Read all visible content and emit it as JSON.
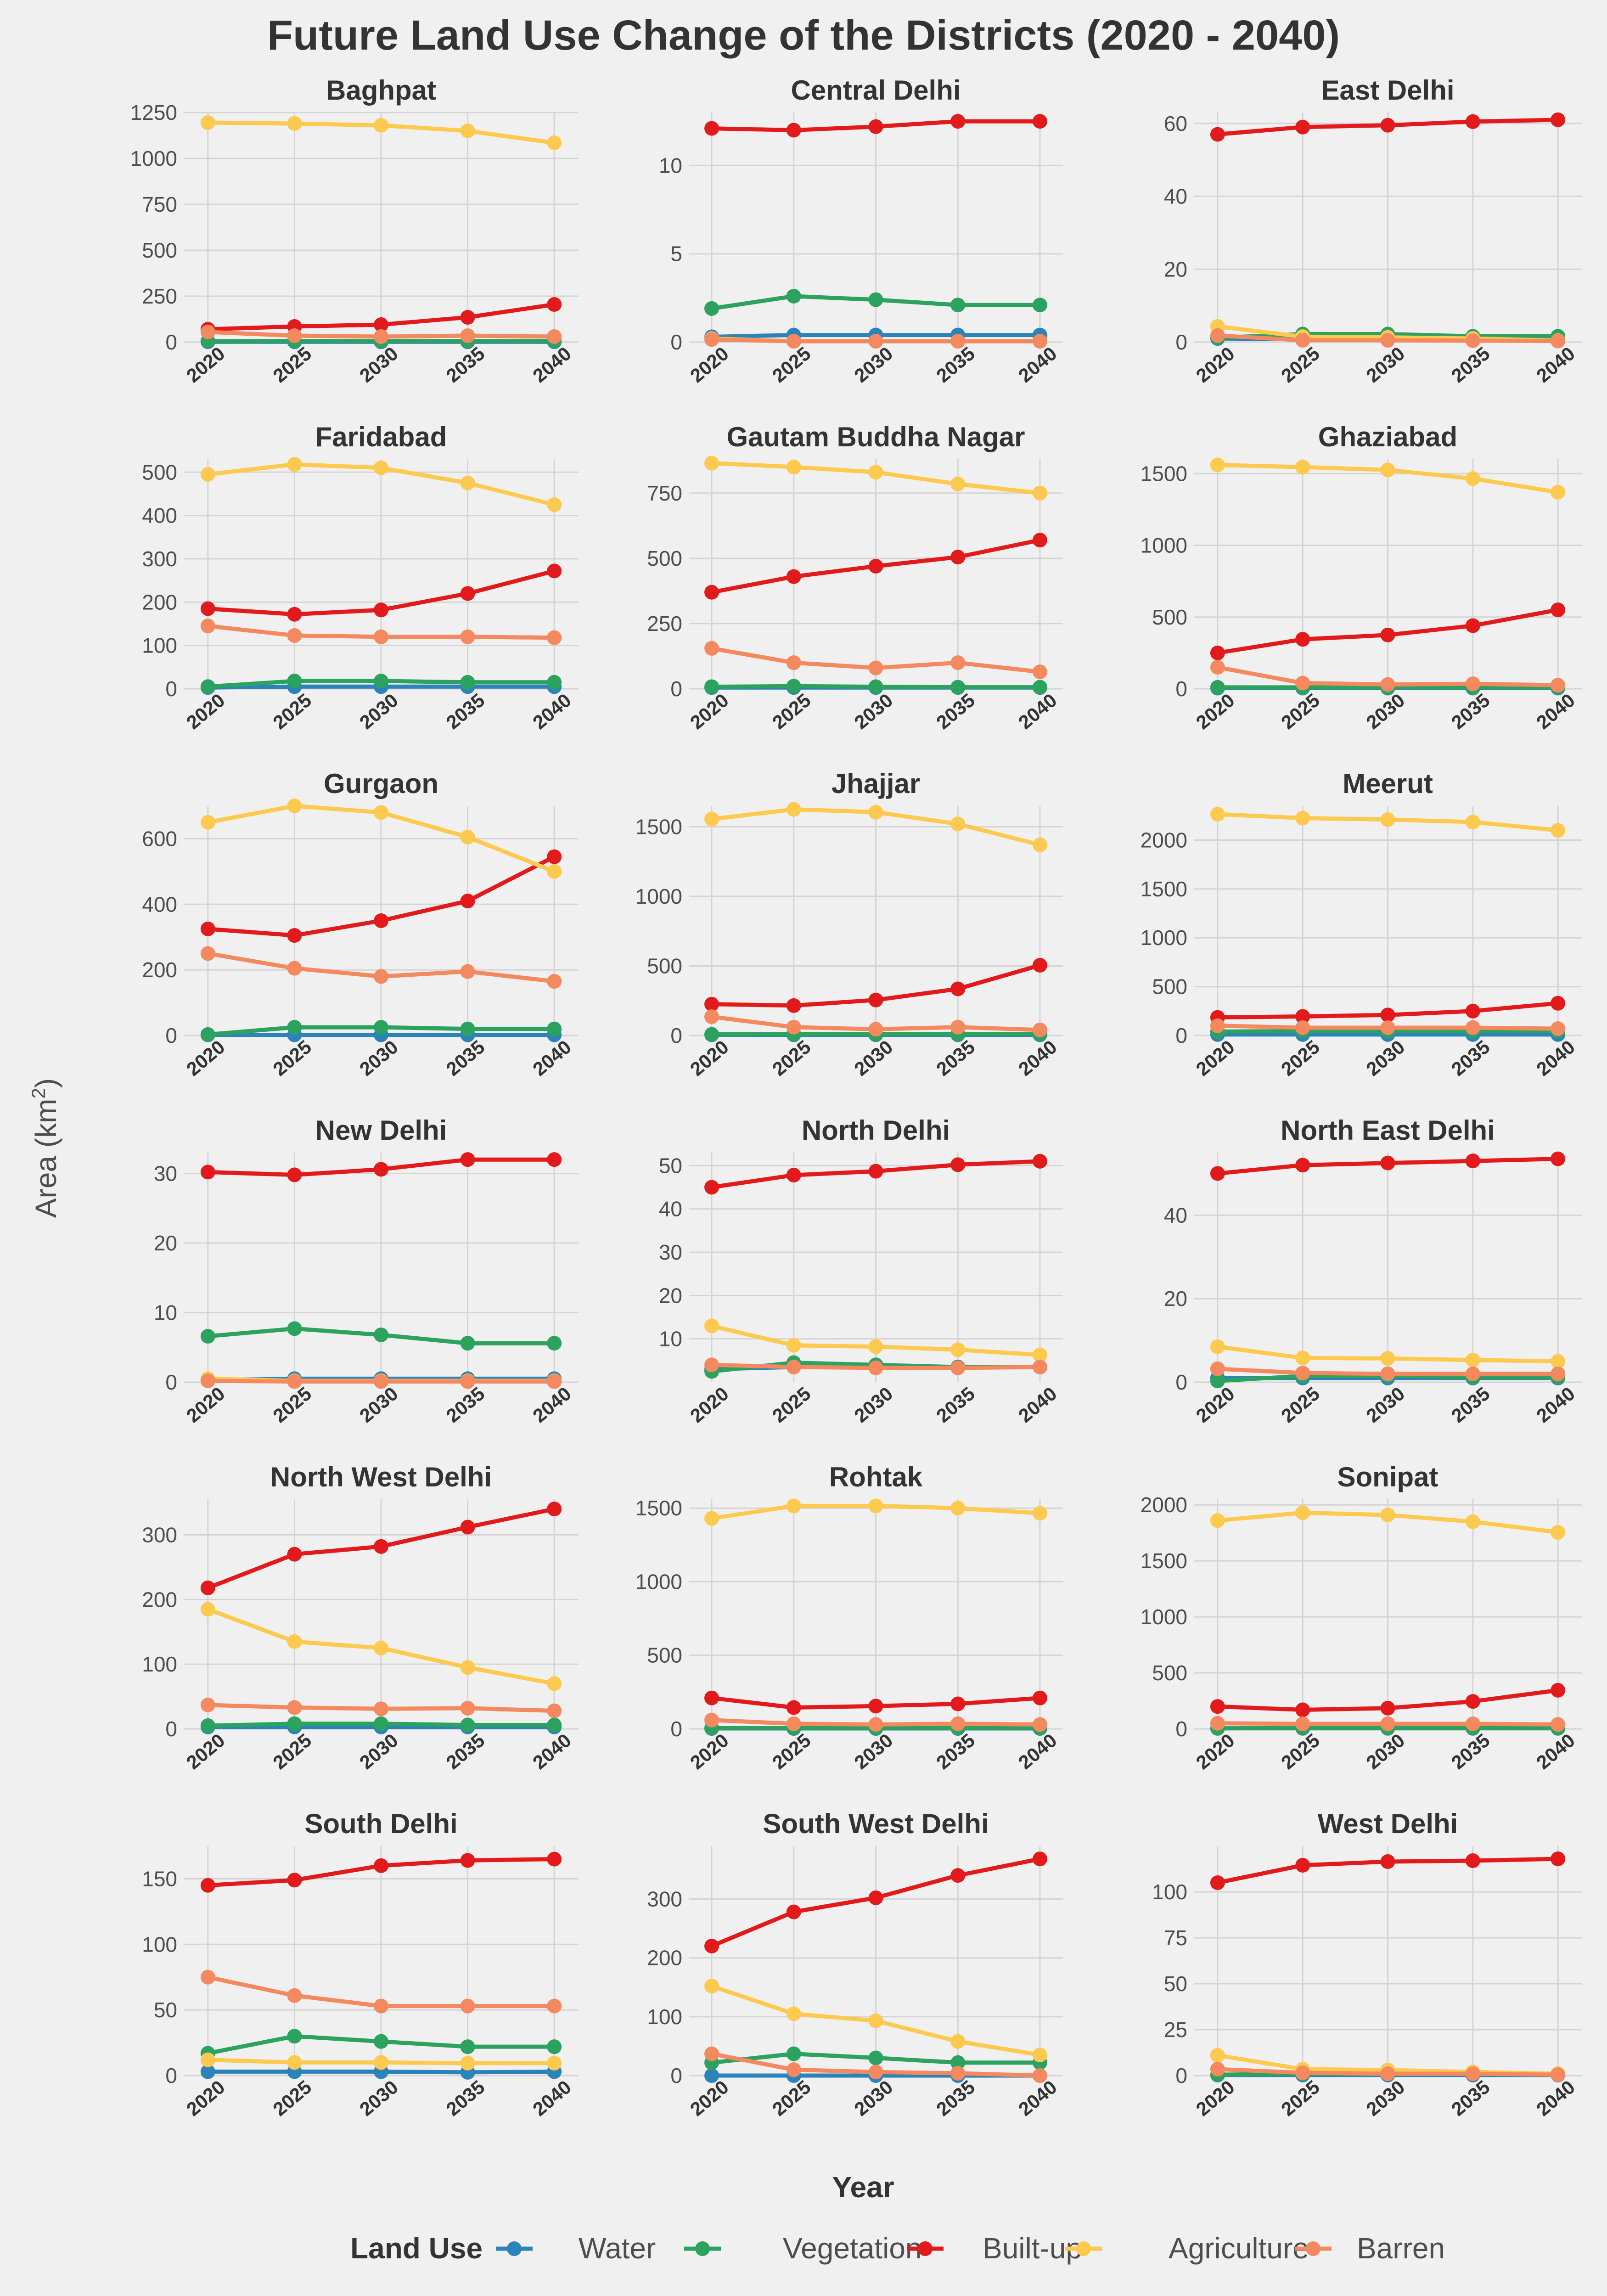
{
  "figure": {
    "title": "Future Land Use Change of the Districts (2020 - 2040)",
    "xlabel": "Year",
    "ylabel": "Area (km²)",
    "legend_title": "Land Use",
    "legend_position": "bottom"
  },
  "colors": {
    "Water": "#2b83ba",
    "Vegetation": "#2ca25f",
    "Built-up": "#e31a1c",
    "Agriculture": "#fdc94f",
    "Barren": "#f4895f",
    "background": "#f0f0f0",
    "grid": "#d4d4d4"
  },
  "chart_data": {
    "type": "line",
    "layout": "facet-grid 6 rows x 3 columns",
    "grid": true,
    "x": [
      2020,
      2025,
      2030,
      2035,
      2040
    ],
    "series_names": [
      "Water",
      "Vegetation",
      "Built-up",
      "Agriculture",
      "Barren"
    ],
    "panels": [
      {
        "title": "Baghpat",
        "ylim": [
          0,
          1250
        ],
        "yticks": [
          0,
          250,
          500,
          750,
          1000,
          1250
        ],
        "series": {
          "Water": [
            2,
            2,
            2,
            2,
            2
          ],
          "Vegetation": [
            5,
            6,
            6,
            6,
            6
          ],
          "Built-up": [
            70,
            85,
            95,
            135,
            205
          ],
          "Agriculture": [
            1195,
            1190,
            1180,
            1150,
            1085
          ],
          "Barren": [
            55,
            35,
            30,
            35,
            30
          ]
        }
      },
      {
        "title": "Central Delhi",
        "ylim": [
          0,
          13
        ],
        "yticks": [
          0,
          5,
          10
        ],
        "series": {
          "Water": [
            0.3,
            0.4,
            0.4,
            0.4,
            0.4
          ],
          "Vegetation": [
            1.9,
            2.6,
            2.4,
            2.1,
            2.1
          ],
          "Built-up": [
            12.1,
            12.0,
            12.2,
            12.5,
            12.5
          ],
          "Agriculture": [
            0.2,
            0.05,
            0.05,
            0.05,
            0.05
          ],
          "Barren": [
            0.15,
            0.05,
            0.05,
            0.05,
            0.05
          ]
        }
      },
      {
        "title": "East Delhi",
        "ylim": [
          0,
          63
        ],
        "yticks": [
          0,
          20,
          40,
          60
        ],
        "series": {
          "Water": [
            1.0,
            0.8,
            0.8,
            0.6,
            0.6
          ],
          "Vegetation": [
            1.2,
            2.2,
            2.2,
            1.6,
            1.6
          ],
          "Built-up": [
            57,
            59,
            59.5,
            60.5,
            61
          ],
          "Agriculture": [
            4.3,
            1.5,
            1.3,
            1.0,
            0.4
          ],
          "Barren": [
            1.8,
            0.5,
            0.5,
            0.4,
            0.3
          ]
        }
      },
      {
        "title": "Faridabad",
        "ylim": [
          0,
          530
        ],
        "yticks": [
          0,
          100,
          200,
          300,
          400,
          500
        ],
        "series": {
          "Water": [
            3,
            5,
            5,
            5,
            5
          ],
          "Vegetation": [
            5,
            18,
            18,
            15,
            15
          ],
          "Built-up": [
            185,
            172,
            182,
            220,
            272
          ],
          "Agriculture": [
            495,
            518,
            510,
            475,
            425
          ],
          "Barren": [
            145,
            123,
            120,
            120,
            118
          ]
        }
      },
      {
        "title": "Gautam Buddha Nagar",
        "ylim": [
          0,
          880
        ],
        "yticks": [
          0,
          250,
          500,
          750
        ],
        "series": {
          "Water": [
            5,
            5,
            5,
            5,
            5
          ],
          "Vegetation": [
            8,
            10,
            8,
            6,
            6
          ],
          "Built-up": [
            370,
            430,
            470,
            505,
            570
          ],
          "Agriculture": [
            865,
            850,
            830,
            785,
            750
          ],
          "Barren": [
            155,
            100,
            80,
            100,
            65
          ]
        }
      },
      {
        "title": "Ghaziabad",
        "ylim": [
          0,
          1600
        ],
        "yticks": [
          0,
          500,
          1000,
          1500
        ],
        "series": {
          "Water": [
            5,
            5,
            5,
            5,
            5
          ],
          "Vegetation": [
            10,
            10,
            10,
            10,
            10
          ],
          "Built-up": [
            250,
            345,
            375,
            440,
            550
          ],
          "Agriculture": [
            1560,
            1545,
            1525,
            1465,
            1370
          ],
          "Barren": [
            150,
            40,
            30,
            35,
            25
          ]
        }
      },
      {
        "title": "Gurgaon",
        "ylim": [
          0,
          700
        ],
        "yticks": [
          0,
          200,
          400,
          600
        ],
        "series": {
          "Water": [
            2,
            2,
            2,
            2,
            2
          ],
          "Vegetation": [
            3,
            25,
            25,
            20,
            20
          ],
          "Built-up": [
            325,
            305,
            350,
            410,
            545
          ],
          "Agriculture": [
            650,
            700,
            680,
            605,
            500
          ],
          "Barren": [
            250,
            205,
            180,
            195,
            165
          ]
        }
      },
      {
        "title": "Jhajjar",
        "ylim": [
          0,
          1650
        ],
        "yticks": [
          0,
          500,
          1000,
          1500
        ],
        "series": {
          "Water": [
            5,
            5,
            5,
            5,
            5
          ],
          "Vegetation": [
            8,
            10,
            10,
            10,
            10
          ],
          "Built-up": [
            225,
            215,
            255,
            335,
            505
          ],
          "Agriculture": [
            1555,
            1625,
            1605,
            1520,
            1370
          ],
          "Barren": [
            135,
            60,
            45,
            60,
            40
          ]
        }
      },
      {
        "title": "Meerut",
        "ylim": [
          0,
          2350
        ],
        "yticks": [
          0,
          500,
          1000,
          1500,
          2000
        ],
        "series": {
          "Water": [
            10,
            10,
            10,
            10,
            10
          ],
          "Vegetation": [
            40,
            45,
            45,
            45,
            45
          ],
          "Built-up": [
            185,
            195,
            210,
            250,
            330
          ],
          "Agriculture": [
            2265,
            2225,
            2210,
            2185,
            2100
          ],
          "Barren": [
            100,
            80,
            80,
            80,
            70
          ]
        }
      },
      {
        "title": "New Delhi",
        "ylim": [
          0,
          33
        ],
        "yticks": [
          0,
          10,
          20,
          30
        ],
        "series": {
          "Water": [
            0.3,
            0.5,
            0.5,
            0.5,
            0.5
          ],
          "Vegetation": [
            6.6,
            7.7,
            6.8,
            5.6,
            5.6
          ],
          "Built-up": [
            30.2,
            29.8,
            30.6,
            32.0,
            32.0
          ],
          "Agriculture": [
            0.5,
            0.2,
            0.2,
            0.2,
            0.2
          ],
          "Barren": [
            0.2,
            0.1,
            0.1,
            0.1,
            0.1
          ]
        }
      },
      {
        "title": "North Delhi",
        "ylim": [
          0,
          53
        ],
        "yticks": [
          10,
          20,
          30,
          40,
          50
        ],
        "series": {
          "Water": [
            3.0,
            3.5,
            3.5,
            3.5,
            3.5
          ],
          "Vegetation": [
            2.5,
            4.5,
            4.0,
            3.5,
            3.5
          ],
          "Built-up": [
            45,
            47.8,
            48.7,
            50.2,
            51
          ],
          "Agriculture": [
            13,
            8.5,
            8.2,
            7.5,
            6.3
          ],
          "Barren": [
            4,
            3.5,
            3.3,
            3.3,
            3.5
          ]
        }
      },
      {
        "title": "North East Delhi",
        "ylim": [
          0,
          55
        ],
        "yticks": [
          0,
          20,
          40
        ],
        "series": {
          "Water": [
            1.0,
            1.0,
            1.0,
            1.0,
            1.0
          ],
          "Vegetation": [
            0.3,
            1.5,
            1.5,
            1.2,
            1.2
          ],
          "Built-up": [
            50,
            52,
            52.5,
            53,
            53.5
          ],
          "Agriculture": [
            8.5,
            5.8,
            5.7,
            5.3,
            5.0
          ],
          "Barren": [
            3.2,
            2.2,
            2.0,
            2.0,
            2.0
          ]
        }
      },
      {
        "title": "North West Delhi",
        "ylim": [
          0,
          355
        ],
        "yticks": [
          0,
          100,
          200,
          300
        ],
        "series": {
          "Water": [
            3,
            3,
            3,
            3,
            3
          ],
          "Vegetation": [
            5,
            8,
            8,
            6,
            6
          ],
          "Built-up": [
            218,
            270,
            282,
            312,
            340
          ],
          "Agriculture": [
            185,
            135,
            125,
            95,
            70
          ],
          "Barren": [
            37,
            33,
            31,
            32,
            28
          ]
        }
      },
      {
        "title": "Rohtak",
        "ylim": [
          0,
          1560
        ],
        "yticks": [
          0,
          500,
          1000,
          1500
        ],
        "series": {
          "Water": [
            3,
            3,
            3,
            3,
            3
          ],
          "Vegetation": [
            5,
            5,
            5,
            5,
            5
          ],
          "Built-up": [
            210,
            145,
            155,
            170,
            210
          ],
          "Agriculture": [
            1430,
            1515,
            1515,
            1500,
            1465
          ],
          "Barren": [
            60,
            35,
            30,
            35,
            30
          ]
        }
      },
      {
        "title": "Sonipat",
        "ylim": [
          0,
          2050
        ],
        "yticks": [
          0,
          500,
          1000,
          1500,
          2000
        ],
        "series": {
          "Water": [
            5,
            5,
            5,
            5,
            5
          ],
          "Vegetation": [
            5,
            8,
            8,
            8,
            8
          ],
          "Built-up": [
            200,
            170,
            185,
            245,
            345
          ],
          "Agriculture": [
            1860,
            1930,
            1910,
            1850,
            1755
          ],
          "Barren": [
            50,
            45,
            45,
            45,
            40
          ]
        }
      },
      {
        "title": "South Delhi",
        "ylim": [
          0,
          175
        ],
        "yticks": [
          0,
          50,
          100,
          150
        ],
        "series": {
          "Water": [
            3,
            3,
            3,
            2.5,
            3
          ],
          "Vegetation": [
            17,
            30,
            26,
            22,
            22
          ],
          "Built-up": [
            145,
            149,
            160,
            164,
            165
          ],
          "Agriculture": [
            12,
            10,
            10,
            9.5,
            9.5
          ],
          "Barren": [
            75,
            61,
            53,
            53,
            53
          ]
        }
      },
      {
        "title": "South West Delhi",
        "ylim": [
          0,
          390
        ],
        "yticks": [
          0,
          100,
          200,
          300
        ],
        "series": {
          "Water": [
            0,
            0,
            0,
            0,
            0
          ],
          "Vegetation": [
            22,
            37,
            30,
            22,
            22
          ],
          "Built-up": [
            220,
            278,
            302,
            340,
            368
          ],
          "Agriculture": [
            152,
            105,
            93,
            58,
            35
          ],
          "Barren": [
            37,
            10,
            6,
            4,
            0
          ]
        }
      },
      {
        "title": "West Delhi",
        "ylim": [
          0,
          125
        ],
        "yticks": [
          0,
          25,
          50,
          75,
          100
        ],
        "series": {
          "Water": [
            0.3,
            0.3,
            0.3,
            0.3,
            0.3
          ],
          "Vegetation": [
            0.5,
            1,
            1,
            1,
            1
          ],
          "Built-up": [
            105,
            114.5,
            116.5,
            117,
            118
          ],
          "Agriculture": [
            11,
            3.5,
            3.0,
            2.0,
            1.0
          ],
          "Barren": [
            3.5,
            1.5,
            1.0,
            1.0,
            0.5
          ]
        }
      }
    ]
  }
}
